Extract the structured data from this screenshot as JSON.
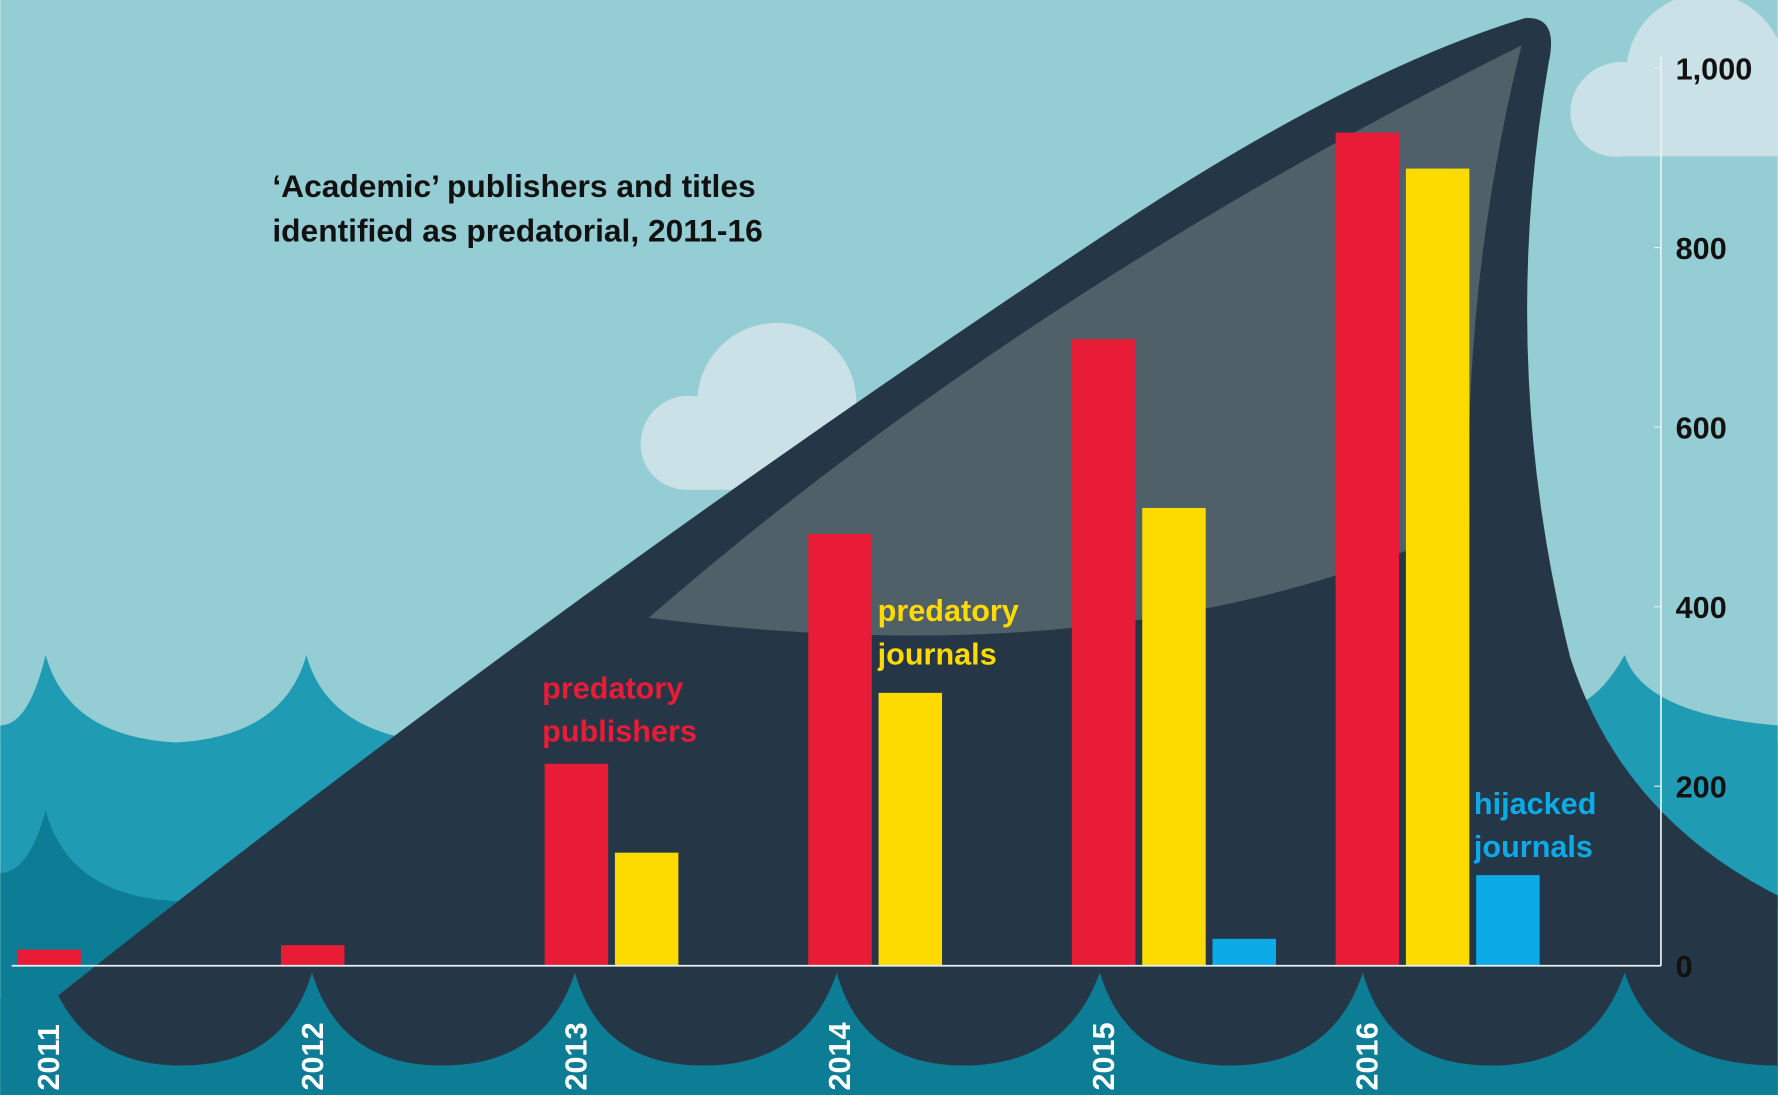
{
  "chart_data": {
    "type": "bar",
    "title": "‘Academic’ publishers and titles identified as predatorial, 2011-16",
    "categories": [
      "2011",
      "2012",
      "2013",
      "2014",
      "2015",
      "2016"
    ],
    "series": [
      {
        "name": "predatory publishers",
        "color": "#e81c36",
        "values": [
          18,
          23,
          225,
          481,
          698,
          928
        ]
      },
      {
        "name": "predatory journals",
        "color": "#fedb00",
        "values": [
          null,
          null,
          126,
          304,
          510,
          888
        ]
      },
      {
        "name": "hijacked journals",
        "color": "#0cabe8",
        "values": [
          null,
          null,
          null,
          null,
          30,
          101
        ]
      }
    ],
    "ylim": [
      0,
      1000
    ],
    "yticks": [
      0,
      200,
      400,
      600,
      800,
      {
        "value": 1000,
        "label": "1,000"
      }
    ]
  }
}
